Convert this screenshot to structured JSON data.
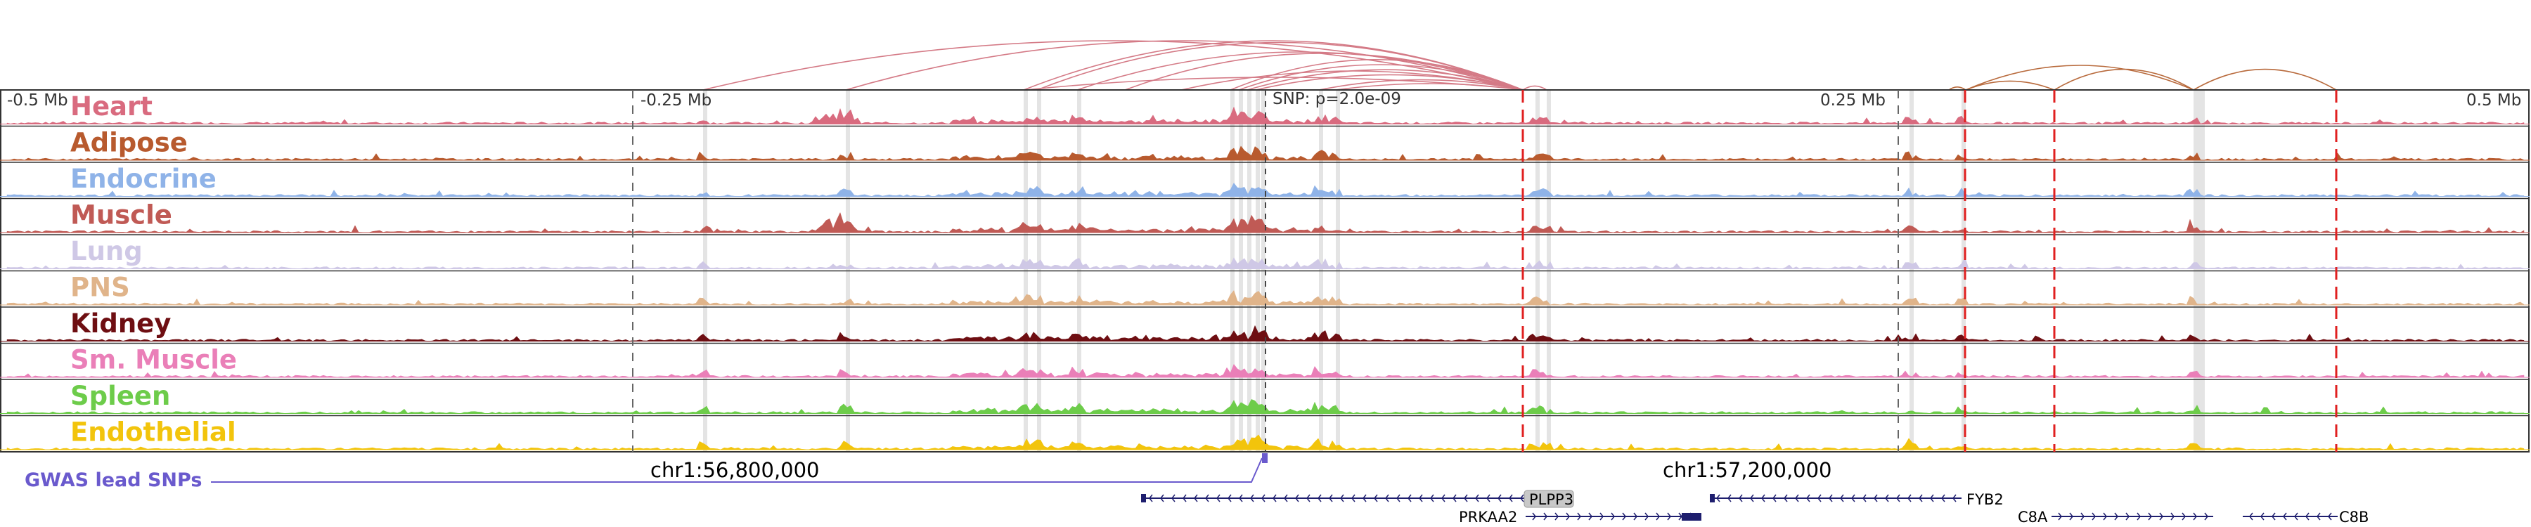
{
  "region": {
    "axis_labels": [
      "-0.5 Mb",
      "-0.25 Mb",
      "0.25 Mb",
      "0.5 Mb"
    ],
    "snp_label": "SNP: p=2.0e-09",
    "coord_labels": [
      "chr1:56,800,000",
      "chr1:57,200,000"
    ],
    "gwas_label": "GWAS lead SNPs"
  },
  "tracks": [
    {
      "name": "Heart",
      "color": "#d96b7f"
    },
    {
      "name": "Adipose",
      "color": "#b85a2e"
    },
    {
      "name": "Endocrine",
      "color": "#8fb3e8"
    },
    {
      "name": "Muscle",
      "color": "#c05a55"
    },
    {
      "name": "Lung",
      "color": "#cfc8e6"
    },
    {
      "name": "PNS",
      "color": "#e0b48a"
    },
    {
      "name": "Kidney",
      "color": "#6e0e12"
    },
    {
      "name": "Sm. Muscle",
      "color": "#ea7fb8"
    },
    {
      "name": "Spleen",
      "color": "#6dcc4a"
    },
    {
      "name": "Endothelial",
      "color": "#f2c40c"
    }
  ],
  "genes": [
    {
      "name": "PLPP3",
      "strand": "-",
      "highlighted": true
    },
    {
      "name": "PRKAA2",
      "strand": "+",
      "highlighted": false
    },
    {
      "name": "FYB2",
      "strand": "-",
      "highlighted": false
    },
    {
      "name": "C8A",
      "strand": "+",
      "highlighted": false
    },
    {
      "name": "C8B",
      "strand": "-",
      "highlighted": false
    }
  ],
  "colors": {
    "arc_primary": "#d47a86",
    "arc_secondary": "#b86a3c",
    "highlight_band": "#d8d8d8",
    "red_marker": "#e02020",
    "gwas": "#6a5acd",
    "gene": "#1e1e6e"
  }
}
